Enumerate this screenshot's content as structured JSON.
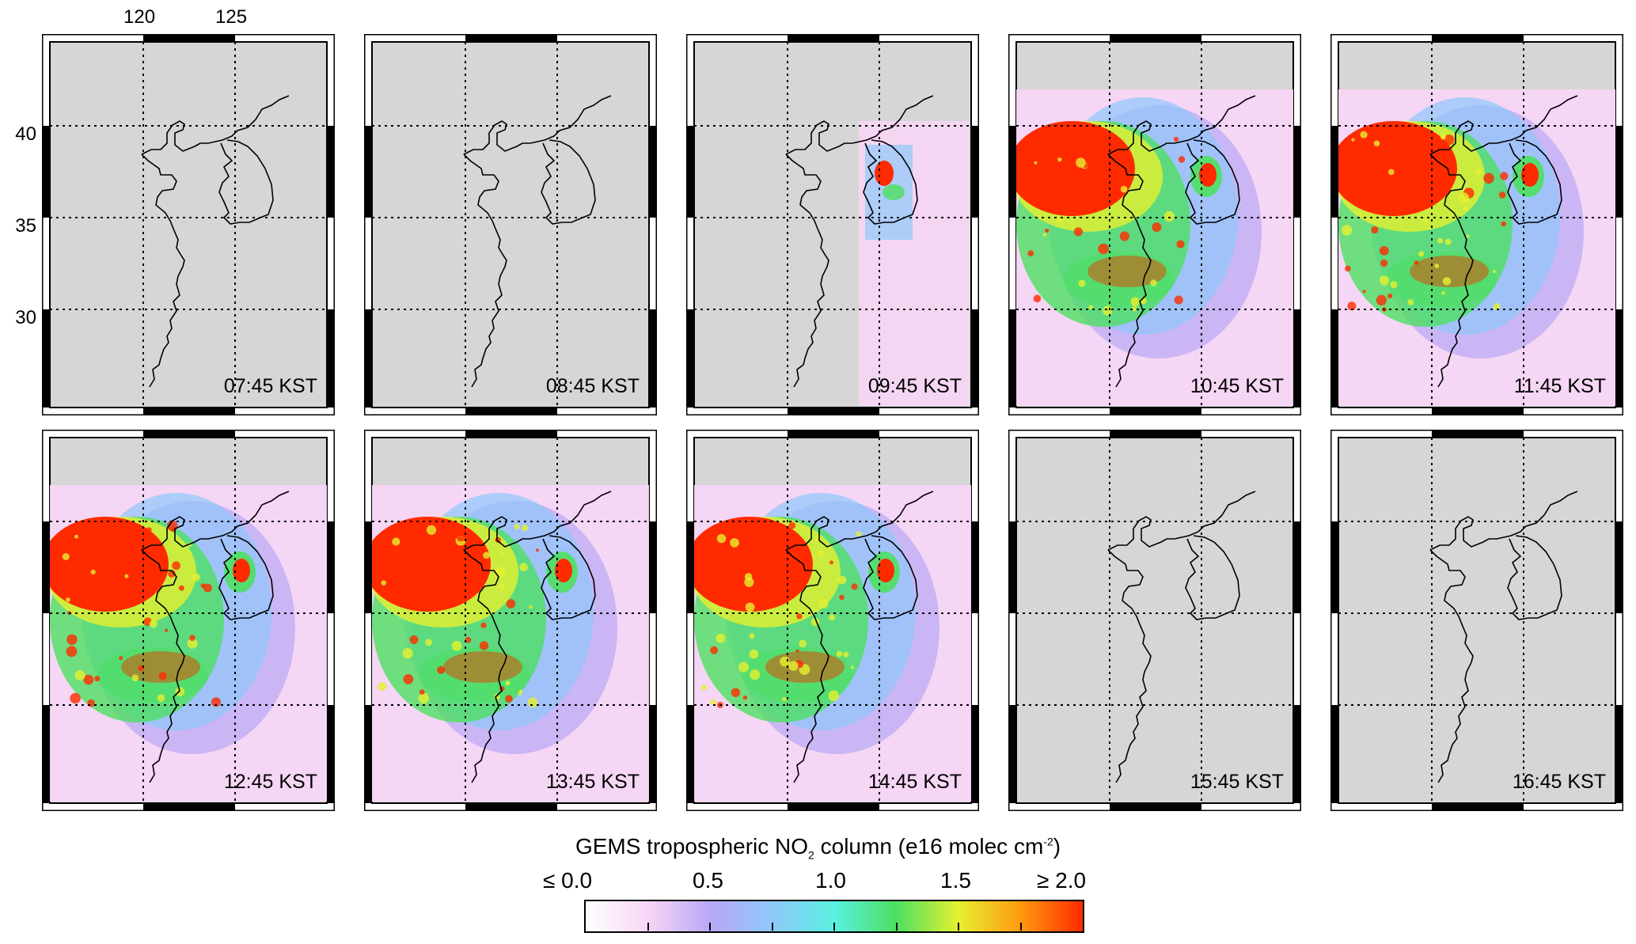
{
  "axes": {
    "lon_ticks": [
      "120",
      "125"
    ],
    "lat_ticks": [
      "40",
      "35",
      "30"
    ]
  },
  "panels": [
    {
      "time": "07:45 KST",
      "no2_coverage": "none"
    },
    {
      "time": "08:45 KST",
      "no2_coverage": "none"
    },
    {
      "time": "09:45 KST",
      "no2_coverage": "east"
    },
    {
      "time": "10:45 KST",
      "no2_coverage": "full"
    },
    {
      "time": "11:45 KST",
      "no2_coverage": "full"
    },
    {
      "time": "12:45 KST",
      "no2_coverage": "full"
    },
    {
      "time": "13:45 KST",
      "no2_coverage": "full"
    },
    {
      "time": "14:45 KST",
      "no2_coverage": "full"
    },
    {
      "time": "15:45 KST",
      "no2_coverage": "none"
    },
    {
      "time": "16:45 KST",
      "no2_coverage": "none"
    }
  ],
  "colorbar": {
    "title_prefix": "GEMS tropospheric NO",
    "title_sub": "2",
    "title_mid": " column (e16 molec cm",
    "title_sup": "-2",
    "title_suffix": ")",
    "ticks": [
      "≤ 0.0",
      "0.5",
      "1.0",
      "1.5",
      "≥ 2.0"
    ],
    "colors": [
      "#ffffff",
      "#f7d6f5",
      "#b8a8f5",
      "#8ec8fb",
      "#5af0e0",
      "#4ce060",
      "#e6f030",
      "#ff9a10",
      "#ff2a00"
    ]
  }
}
